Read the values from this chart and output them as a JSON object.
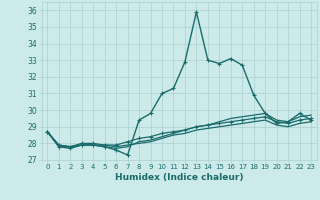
{
  "xlabel": "Humidex (Indice chaleur)",
  "background_color": "#cceaea",
  "grid_color": "#aacfcf",
  "line_color": "#1a6b6b",
  "xlim": [
    -0.5,
    23.5
  ],
  "ylim": [
    27,
    36.5
  ],
  "yticks": [
    27,
    28,
    29,
    30,
    31,
    32,
    33,
    34,
    35,
    36
  ],
  "xticks": [
    0,
    1,
    2,
    3,
    4,
    5,
    6,
    7,
    8,
    9,
    10,
    11,
    12,
    13,
    14,
    15,
    16,
    17,
    18,
    19,
    20,
    21,
    22,
    23
  ],
  "series": [
    {
      "x": [
        0,
        1,
        2,
        3,
        4,
        5,
        6,
        7,
        8,
        9,
        10,
        11,
        12,
        13,
        14,
        15,
        16,
        17,
        18,
        19,
        20,
        21,
        22,
        23
      ],
      "y": [
        28.7,
        27.8,
        27.7,
        27.9,
        27.9,
        27.8,
        27.6,
        27.3,
        29.4,
        29.8,
        31.0,
        31.3,
        32.9,
        35.9,
        33.0,
        32.8,
        33.1,
        32.7,
        30.9,
        29.8,
        29.2,
        29.3,
        29.8,
        29.4
      ],
      "marker": "+",
      "linewidth": 1.0,
      "markersize": 3.5
    },
    {
      "x": [
        0,
        1,
        2,
        3,
        4,
        5,
        6,
        7,
        8,
        9,
        10,
        11,
        12,
        13,
        14,
        15,
        16,
        17,
        18,
        19,
        20,
        21,
        22,
        23
      ],
      "y": [
        28.7,
        27.8,
        27.8,
        27.9,
        27.9,
        27.8,
        27.7,
        27.8,
        28.1,
        28.2,
        28.4,
        28.6,
        28.8,
        29.0,
        29.1,
        29.3,
        29.5,
        29.6,
        29.7,
        29.8,
        29.4,
        29.3,
        29.6,
        29.7
      ],
      "marker": null,
      "linewidth": 0.9,
      "markersize": 0
    },
    {
      "x": [
        0,
        1,
        2,
        3,
        4,
        5,
        6,
        7,
        8,
        9,
        10,
        11,
        12,
        13,
        14,
        15,
        16,
        17,
        18,
        19,
        20,
        21,
        22,
        23
      ],
      "y": [
        28.7,
        27.9,
        27.8,
        27.9,
        27.9,
        27.9,
        27.8,
        27.9,
        28.0,
        28.1,
        28.3,
        28.5,
        28.6,
        28.8,
        28.9,
        29.0,
        29.1,
        29.2,
        29.3,
        29.4,
        29.1,
        29.0,
        29.2,
        29.3
      ],
      "marker": null,
      "linewidth": 0.9,
      "markersize": 0
    },
    {
      "x": [
        0,
        1,
        2,
        3,
        4,
        5,
        6,
        7,
        8,
        9,
        10,
        11,
        12,
        13,
        14,
        15,
        16,
        17,
        18,
        19,
        20,
        21,
        22,
        23
      ],
      "y": [
        28.7,
        27.9,
        27.8,
        28.0,
        28.0,
        27.9,
        27.9,
        28.1,
        28.3,
        28.4,
        28.6,
        28.7,
        28.8,
        29.0,
        29.1,
        29.2,
        29.3,
        29.4,
        29.5,
        29.6,
        29.3,
        29.2,
        29.4,
        29.5
      ],
      "marker": "+",
      "linewidth": 0.9,
      "markersize": 3.0
    }
  ]
}
